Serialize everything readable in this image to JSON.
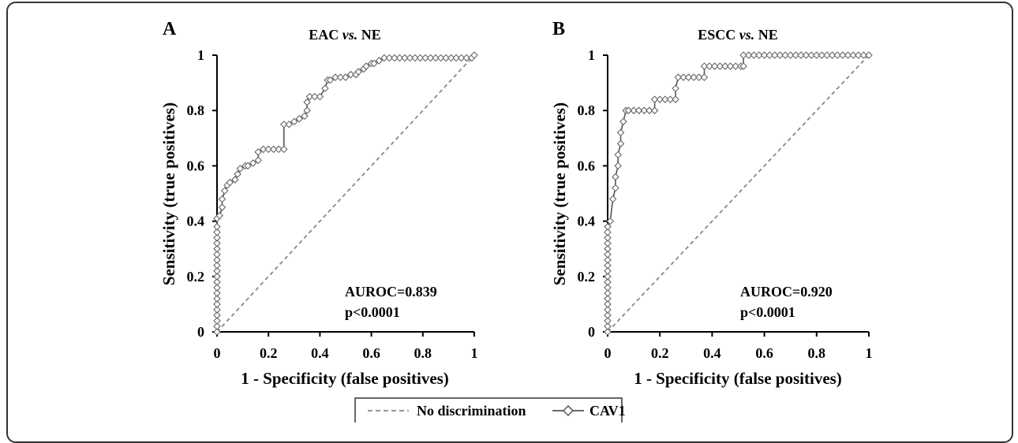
{
  "legend": {
    "items": [
      {
        "label": "No discrimination",
        "style": "dashed",
        "color": "#888888"
      },
      {
        "label": "CAV1",
        "style": "line-diamond",
        "color": "#555555"
      }
    ]
  },
  "chart_data": [
    {
      "type": "line",
      "panel_label": "A",
      "title": "EAC vs. NE",
      "title_main": "EAC ",
      "title_vs": "vs.",
      "title_tail": " NE",
      "xlabel": "1 - Specificity (false positives)",
      "ylabel": "Sensitivity (true positives)",
      "xlim": [
        0,
        1
      ],
      "ylim": [
        0,
        1
      ],
      "xticks": [
        "0",
        "0.2",
        "0.4",
        "0.6",
        "0.8",
        "1"
      ],
      "yticks": [
        "0",
        "0.2",
        "0.4",
        "0.6",
        "0.8",
        "1"
      ],
      "grid": false,
      "annotations": [
        "AUROC=0.839",
        "p<0.0001"
      ],
      "series": [
        {
          "name": "No discrimination",
          "style": "dashed",
          "x": [
            0,
            1
          ],
          "y": [
            0,
            1
          ]
        },
        {
          "name": "CAV1",
          "style": "line-diamond",
          "x": [
            0,
            0,
            0,
            0,
            0,
            0,
            0,
            0,
            0,
            0,
            0,
            0,
            0,
            0,
            0,
            0,
            0,
            0,
            0,
            0,
            0,
            0.01,
            0.02,
            0.02,
            0.03,
            0.04,
            0.05,
            0.07,
            0.08,
            0.09,
            0.11,
            0.12,
            0.14,
            0.16,
            0.16,
            0.18,
            0.2,
            0.22,
            0.24,
            0.26,
            0.26,
            0.28,
            0.3,
            0.32,
            0.34,
            0.35,
            0.35,
            0.36,
            0.38,
            0.4,
            0.42,
            0.43,
            0.44,
            0.46,
            0.48,
            0.5,
            0.52,
            0.54,
            0.55,
            0.57,
            0.58,
            0.6,
            0.61,
            0.63,
            0.65,
            0.67,
            0.69,
            0.71,
            0.73,
            0.75,
            0.77,
            0.79,
            0.81,
            0.83,
            0.85,
            0.87,
            0.89,
            0.91,
            0.93,
            0.95,
            0.97,
            0.99,
            1.0
          ],
          "y": [
            0,
            0.02,
            0.04,
            0.06,
            0.08,
            0.1,
            0.12,
            0.14,
            0.16,
            0.18,
            0.2,
            0.22,
            0.24,
            0.26,
            0.28,
            0.3,
            0.32,
            0.34,
            0.36,
            0.38,
            0.41,
            0.42,
            0.45,
            0.48,
            0.51,
            0.53,
            0.54,
            0.55,
            0.57,
            0.59,
            0.6,
            0.6,
            0.61,
            0.62,
            0.65,
            0.66,
            0.66,
            0.66,
            0.66,
            0.66,
            0.75,
            0.75,
            0.76,
            0.77,
            0.78,
            0.8,
            0.83,
            0.85,
            0.85,
            0.85,
            0.88,
            0.91,
            0.91,
            0.92,
            0.92,
            0.92,
            0.93,
            0.93,
            0.94,
            0.95,
            0.96,
            0.97,
            0.97,
            0.98,
            0.99,
            0.99,
            0.99,
            0.99,
            0.99,
            0.99,
            0.99,
            0.99,
            0.99,
            0.99,
            0.99,
            0.99,
            0.99,
            0.99,
            0.99,
            0.99,
            0.99,
            0.99,
            1.0
          ]
        }
      ]
    },
    {
      "type": "line",
      "panel_label": "B",
      "title": "ESCC vs. NE",
      "title_main": "ESCC ",
      "title_vs": "vs.",
      "title_tail": " NE",
      "xlabel": "1 - Specificity (false positives)",
      "ylabel": "Sensitivity (true positives)",
      "xlim": [
        0,
        1
      ],
      "ylim": [
        0,
        1
      ],
      "xticks": [
        "0",
        "0.2",
        "0.4",
        "0.6",
        "0.8",
        "1"
      ],
      "yticks": [
        "0",
        "0.2",
        "0.4",
        "0.6",
        "0.8",
        "1"
      ],
      "grid": false,
      "annotations": [
        "AUROC=0.920",
        "p<0.0001"
      ],
      "series": [
        {
          "name": "No discrimination",
          "style": "dashed",
          "x": [
            0,
            1
          ],
          "y": [
            0,
            1
          ]
        },
        {
          "name": "CAV1",
          "style": "line-diamond",
          "x": [
            0,
            0,
            0,
            0,
            0,
            0,
            0,
            0,
            0,
            0,
            0,
            0,
            0,
            0,
            0,
            0,
            0,
            0,
            0,
            0,
            0.01,
            0.02,
            0.03,
            0.03,
            0.04,
            0.04,
            0.05,
            0.05,
            0.06,
            0.07,
            0.08,
            0.1,
            0.12,
            0.14,
            0.16,
            0.18,
            0.18,
            0.2,
            0.22,
            0.24,
            0.26,
            0.26,
            0.27,
            0.29,
            0.31,
            0.33,
            0.35,
            0.37,
            0.37,
            0.39,
            0.41,
            0.43,
            0.45,
            0.47,
            0.49,
            0.51,
            0.52,
            0.52,
            0.54,
            0.56,
            0.58,
            0.6,
            0.62,
            0.64,
            0.66,
            0.68,
            0.7,
            0.72,
            0.74,
            0.76,
            0.78,
            0.8,
            0.82,
            0.84,
            0.86,
            0.88,
            0.9,
            0.92,
            0.94,
            0.96,
            0.98,
            1.0
          ],
          "y": [
            0,
            0.02,
            0.04,
            0.06,
            0.08,
            0.1,
            0.12,
            0.14,
            0.16,
            0.18,
            0.2,
            0.22,
            0.24,
            0.26,
            0.28,
            0.3,
            0.32,
            0.34,
            0.36,
            0.38,
            0.4,
            0.48,
            0.52,
            0.56,
            0.6,
            0.64,
            0.68,
            0.72,
            0.76,
            0.8,
            0.8,
            0.8,
            0.8,
            0.8,
            0.8,
            0.8,
            0.84,
            0.84,
            0.84,
            0.84,
            0.84,
            0.88,
            0.92,
            0.92,
            0.92,
            0.92,
            0.92,
            0.92,
            0.96,
            0.96,
            0.96,
            0.96,
            0.96,
            0.96,
            0.96,
            0.96,
            0.96,
            1.0,
            1.0,
            1.0,
            1.0,
            1.0,
            1.0,
            1.0,
            1.0,
            1.0,
            1.0,
            1.0,
            1.0,
            1.0,
            1.0,
            1.0,
            1.0,
            1.0,
            1.0,
            1.0,
            1.0,
            1.0,
            1.0,
            1.0,
            1.0,
            1.0
          ]
        }
      ]
    }
  ]
}
